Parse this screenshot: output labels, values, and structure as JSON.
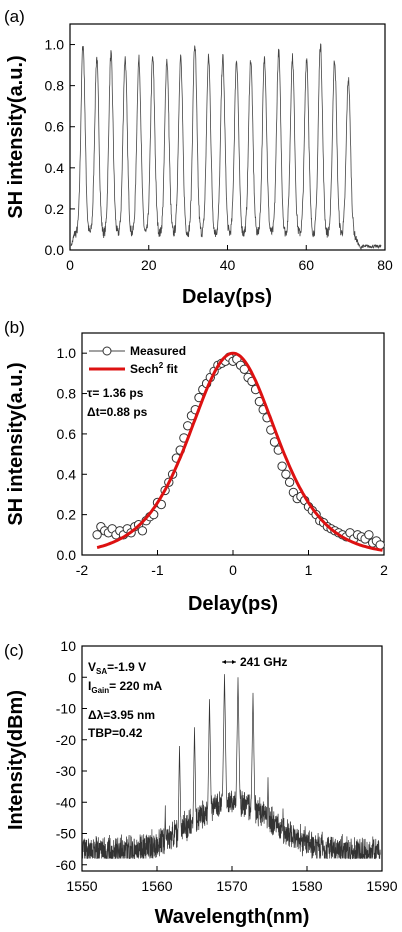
{
  "chart_data": [
    {
      "panel_label": "(a)",
      "type": "line",
      "xlabel": "Delay(ps)",
      "ylabel": "SH intensity(a.u.)",
      "xlim": [
        0,
        80
      ],
      "ylim": [
        0,
        1.1
      ],
      "xticks": [
        "0",
        "20",
        "40",
        "60",
        "80"
      ],
      "yticks": [
        "0.0",
        "0.2",
        "0.4",
        "0.6",
        "0.8",
        "1.0"
      ],
      "pulse_train": {
        "peak_positions_ps": [
          3.3,
          6.8,
          10.4,
          14.0,
          17.5,
          21.0,
          24.6,
          28.1,
          31.7,
          35.2,
          38.8,
          42.3,
          45.9,
          49.4,
          53.0,
          56.5,
          60.1,
          63.6,
          67.2,
          70.7
        ],
        "peak_heights": [
          1.0,
          0.93,
          0.95,
          0.93,
          0.92,
          0.93,
          0.92,
          0.93,
          1.0,
          0.93,
          0.93,
          0.92,
          0.92,
          0.93,
          0.96,
          0.93,
          0.93,
          1.0,
          0.92,
          0.82
        ],
        "baseline": 0.08,
        "end_ps": 74
      }
    },
    {
      "panel_label": "(b)",
      "type": "scatter",
      "xlabel": "Delay(ps)",
      "ylabel": "SH intensity(a.u.)",
      "xlim": [
        -2,
        2
      ],
      "ylim": [
        0,
        1.1
      ],
      "xticks": [
        "-2",
        "-1",
        "0",
        "1",
        "2"
      ],
      "yticks": [
        "0.0",
        "0.2",
        "0.4",
        "0.6",
        "0.8",
        "1.0"
      ],
      "legend": {
        "measured": "Measured",
        "fit": "Sech",
        "fit_sup": "2",
        "fit_tail": " fit"
      },
      "annotations": [
        "τ= 1.36 ps",
        "Δt=0.88 ps"
      ],
      "fit": {
        "center": 0,
        "peak": 1.0,
        "fwhm_ps": 1.36
      },
      "series": [
        {
          "name": "Measured",
          "x": [
            -1.8,
            -1.75,
            -1.7,
            -1.65,
            -1.6,
            -1.55,
            -1.5,
            -1.45,
            -1.4,
            -1.35,
            -1.3,
            -1.25,
            -1.2,
            -1.15,
            -1.1,
            -1.05,
            -1.0,
            -0.95,
            -0.9,
            -0.85,
            -0.8,
            -0.75,
            -0.7,
            -0.65,
            -0.6,
            -0.55,
            -0.5,
            -0.45,
            -0.4,
            -0.35,
            -0.3,
            -0.25,
            -0.2,
            -0.15,
            -0.1,
            -0.05,
            0.0,
            0.05,
            0.1,
            0.15,
            0.2,
            0.25,
            0.3,
            0.35,
            0.4,
            0.45,
            0.5,
            0.55,
            0.6,
            0.65,
            0.7,
            0.75,
            0.8,
            0.85,
            0.9,
            0.95,
            1.0,
            1.05,
            1.1,
            1.15,
            1.2,
            1.25,
            1.3,
            1.35,
            1.4,
            1.45,
            1.5,
            1.55,
            1.6,
            1.65,
            1.7,
            1.75,
            1.8,
            1.85,
            1.9,
            1.95
          ],
          "y": [
            0.1,
            0.14,
            0.12,
            0.11,
            0.13,
            0.1,
            0.12,
            0.1,
            0.13,
            0.11,
            0.14,
            0.15,
            0.12,
            0.17,
            0.19,
            0.2,
            0.26,
            0.25,
            0.32,
            0.36,
            0.4,
            0.48,
            0.52,
            0.58,
            0.64,
            0.69,
            0.72,
            0.78,
            0.82,
            0.85,
            0.88,
            0.91,
            0.94,
            0.95,
            0.96,
            0.98,
            0.96,
            0.97,
            0.94,
            0.92,
            0.88,
            0.86,
            0.82,
            0.76,
            0.72,
            0.68,
            0.62,
            0.56,
            0.52,
            0.44,
            0.4,
            0.36,
            0.31,
            0.28,
            0.29,
            0.27,
            0.24,
            0.22,
            0.2,
            0.17,
            0.16,
            0.14,
            0.13,
            0.12,
            0.11,
            0.1,
            0.09,
            0.11,
            0.08,
            0.1,
            0.09,
            0.08,
            0.1,
            0.06,
            0.07,
            0.05
          ]
        }
      ]
    },
    {
      "panel_label": "(c)",
      "type": "line",
      "xlabel": "Wavelength(nm)",
      "ylabel": "Intensity(dBm)",
      "xlim": [
        1550,
        1590
      ],
      "ylim": [
        -62,
        10
      ],
      "xticks": [
        "1550",
        "1560",
        "1570",
        "1580",
        "1590"
      ],
      "yticks": [
        "10",
        "0",
        "-10",
        "-20",
        "-30",
        "-40",
        "-50",
        "-60"
      ],
      "annotations": {
        "vsa_main": "V",
        "vsa_sub": "SA",
        "vsa_value": "=-1.9 V",
        "igain_main": "I",
        "igain_sub": "Gain",
        "igain_value": "= 220 mA",
        "dlambda": "Δλ=3.95 nm",
        "tbp": "TBP=0.42",
        "spacing": "241 GHz"
      },
      "modes": {
        "wavelengths_nm": [
          1561.1,
          1563.0,
          1565.0,
          1567.0,
          1569.0,
          1570.8,
          1572.8,
          1574.8,
          1576.8
        ],
        "peak_dbm": [
          -41,
          -22,
          -16,
          -7,
          1,
          0,
          -5,
          -32,
          -42
        ]
      }
    }
  ]
}
